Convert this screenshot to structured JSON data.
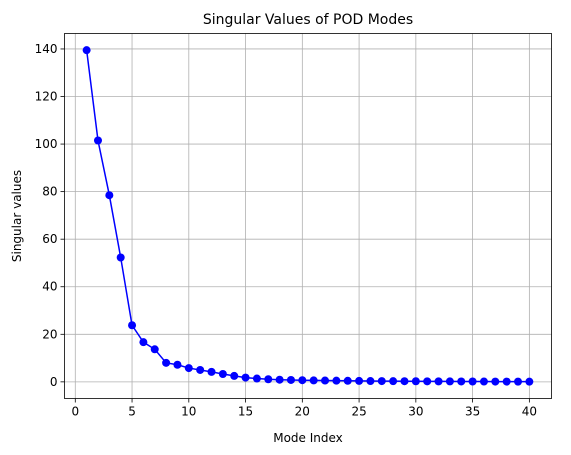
{
  "chart_data": {
    "type": "line",
    "title": "Singular Values of POD Modes",
    "xlabel": "Mode Index",
    "ylabel": "Singular values",
    "xlim": [
      -0.95,
      41.95
    ],
    "ylim": [
      -7.0,
      146.5
    ],
    "xticks": [
      0,
      5,
      10,
      15,
      20,
      25,
      30,
      35,
      40
    ],
    "yticks": [
      0,
      20,
      40,
      60,
      80,
      100,
      120,
      140
    ],
    "grid": true,
    "series": [
      {
        "color": "#0000ff",
        "marker": "circle",
        "x": [
          1,
          2,
          3,
          4,
          5,
          6,
          7,
          8,
          9,
          10,
          11,
          12,
          13,
          14,
          15,
          16,
          17,
          18,
          19,
          20,
          21,
          22,
          23,
          24,
          25,
          26,
          27,
          28,
          29,
          30,
          31,
          32,
          33,
          34,
          35,
          36,
          37,
          38,
          39,
          40
        ],
        "values": [
          139.5,
          101.5,
          78.5,
          52.3,
          23.8,
          16.7,
          13.7,
          8.0,
          7.2,
          5.8,
          5.0,
          4.2,
          3.3,
          2.5,
          1.8,
          1.4,
          1.1,
          0.9,
          0.8,
          0.7,
          0.6,
          0.55,
          0.5,
          0.45,
          0.4,
          0.35,
          0.32,
          0.3,
          0.27,
          0.25,
          0.22,
          0.2,
          0.18,
          0.16,
          0.15,
          0.13,
          0.12,
          0.11,
          0.1,
          0.09
        ]
      }
    ]
  }
}
